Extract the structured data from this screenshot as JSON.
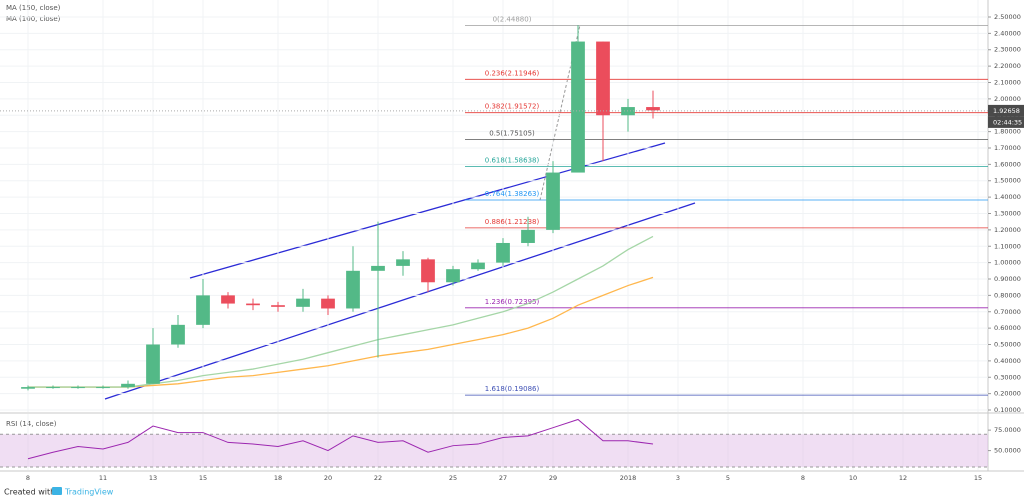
{
  "chart_data": [
    {
      "type": "candlestick",
      "x": [
        8,
        9,
        10,
        11,
        12,
        13,
        14,
        15,
        16,
        17,
        18,
        19,
        20,
        21,
        22,
        23,
        24,
        25,
        26,
        27,
        28,
        29,
        30,
        31,
        32,
        33
      ],
      "open": [
        0.23,
        0.24,
        0.24,
        0.24,
        0.24,
        0.26,
        0.5,
        0.62,
        0.8,
        0.75,
        0.74,
        0.73,
        0.78,
        0.72,
        0.95,
        0.98,
        1.02,
        0.88,
        0.96,
        1.0,
        1.12,
        1.2,
        1.55,
        2.35,
        1.9,
        1.95
      ],
      "high": [
        0.25,
        0.25,
        0.25,
        0.25,
        0.28,
        0.6,
        0.68,
        0.9,
        0.82,
        0.78,
        0.76,
        0.84,
        0.8,
        1.1,
        1.25,
        1.07,
        1.03,
        0.98,
        1.02,
        1.15,
        1.28,
        1.62,
        2.45,
        2.35,
        2.0,
        2.05
      ],
      "low": [
        0.22,
        0.23,
        0.23,
        0.23,
        0.23,
        0.26,
        0.48,
        0.6,
        0.72,
        0.71,
        0.7,
        0.7,
        0.68,
        0.7,
        0.42,
        0.92,
        0.82,
        0.86,
        0.95,
        0.98,
        1.1,
        1.18,
        1.55,
        1.62,
        1.8,
        1.88
      ],
      "close": [
        0.24,
        0.24,
        0.24,
        0.24,
        0.26,
        0.5,
        0.62,
        0.8,
        0.75,
        0.74,
        0.73,
        0.78,
        0.72,
        0.95,
        0.98,
        1.02,
        0.88,
        0.96,
        1.0,
        1.12,
        1.2,
        1.55,
        2.35,
        1.9,
        1.95,
        1.93
      ],
      "up_color": "#53b987",
      "down_color": "#eb4d5c",
      "series": [
        {
          "name": "MA (150, close)",
          "color": "#ffb74d",
          "values": [
            0.24,
            0.24,
            0.24,
            0.24,
            0.24,
            0.25,
            0.26,
            0.28,
            0.3,
            0.31,
            0.33,
            0.35,
            0.37,
            0.4,
            0.43,
            0.45,
            0.47,
            0.5,
            0.53,
            0.56,
            0.6,
            0.66,
            0.74,
            0.8,
            0.86,
            0.91
          ]
        },
        {
          "name": "MA (100, close)",
          "color": "#a5d6a7",
          "values": [
            0.24,
            0.24,
            0.24,
            0.24,
            0.24,
            0.26,
            0.28,
            0.31,
            0.33,
            0.35,
            0.38,
            0.41,
            0.45,
            0.49,
            0.53,
            0.56,
            0.59,
            0.62,
            0.66,
            0.7,
            0.75,
            0.82,
            0.9,
            0.98,
            1.08,
            1.16
          ]
        }
      ],
      "xlim": [
        6.88,
        46.4
      ],
      "xticks": [
        8,
        11,
        13,
        15,
        18,
        20,
        22,
        25,
        27,
        29,
        {
          "value": 32,
          "label": "2018"
        },
        {
          "value": 34,
          "label": "3"
        },
        {
          "value": 36,
          "label": "5"
        },
        {
          "value": 39,
          "label": "8"
        },
        {
          "value": 41,
          "label": "10"
        },
        {
          "value": 43,
          "label": "12"
        },
        {
          "value": 46,
          "label": "15"
        }
      ],
      "ylim": [
        0.0878,
        2.6038
      ],
      "yticks": [
        {
          "value": 0.1,
          "label": "0.10000"
        },
        {
          "value": 0.2,
          "label": "0.20000"
        },
        {
          "value": 0.3,
          "label": "0.30000"
        },
        {
          "value": 0.4,
          "label": "0.40000"
        },
        {
          "value": 0.5,
          "label": "0.50000"
        },
        {
          "value": 0.6,
          "label": "0.60000"
        },
        {
          "value": 0.7,
          "label": "0.70000"
        },
        {
          "value": 0.8,
          "label": "0.80000"
        },
        {
          "value": 0.9,
          "label": "0.90000"
        },
        {
          "value": 1.0,
          "label": "1.00000"
        },
        {
          "value": 1.1,
          "label": "1.10000"
        },
        {
          "value": 1.2,
          "label": "1.20000"
        },
        {
          "value": 1.3,
          "label": "1.30000"
        },
        {
          "value": 1.4,
          "label": "1.40000"
        },
        {
          "value": 1.5,
          "label": "1.50000"
        },
        {
          "value": 1.6,
          "label": "1.60000"
        },
        {
          "value": 1.7,
          "label": "1.70000"
        },
        {
          "value": 1.8,
          "label": "1.80000"
        },
        {
          "value": 1.9,
          "label": "1.90000"
        },
        {
          "value": 2.0,
          "label": "2.00000"
        },
        {
          "value": 2.1,
          "label": "2.10000"
        },
        {
          "value": 2.2,
          "label": "2.20000"
        },
        {
          "value": 2.3,
          "label": "2.30000"
        },
        {
          "value": 2.4,
          "label": "2.40000"
        },
        {
          "value": 2.5,
          "label": "2.50000"
        }
      ],
      "grid": true,
      "fib": [
        {
          "value": 2.4488,
          "label": "0(2.44880)",
          "color": "#9e9e9e"
        },
        {
          "value": 2.11946,
          "label": "0.236(2.11946)",
          "color": "#e53935"
        },
        {
          "value": 1.91572,
          "label": "0.382(1.91572)",
          "color": "#e53935"
        },
        {
          "value": 1.75105,
          "label": "0.5(1.75105)",
          "color": "#555555"
        },
        {
          "value": 1.58638,
          "label": "0.618(1.58638)",
          "color": "#26a69a"
        },
        {
          "value": 1.38263,
          "label": "0.764(1.38263)",
          "color": "#2196f3"
        },
        {
          "value": 1.21238,
          "label": "0.886(1.21238)",
          "color": "#e53935"
        },
        {
          "value": 0.72395,
          "label": "1.236(0.72395)",
          "color": "#9c27b0"
        },
        {
          "value": 0.19086,
          "label": "1.618(0.19086)",
          "color": "#3f51b5"
        }
      ],
      "last_price": {
        "value": 1.92658,
        "label": "1.92658"
      },
      "countdown": "02:44:35"
    },
    {
      "type": "line",
      "title": "RSI (14, close)",
      "series": [
        {
          "color": "#9c27b0",
          "values": [
            40,
            48,
            55,
            52,
            60,
            80,
            72,
            72,
            60,
            58,
            55,
            62,
            50,
            68,
            60,
            62,
            48,
            56,
            58,
            66,
            68,
            78,
            88,
            62,
            62,
            58
          ]
        }
      ],
      "ylim": [
        26.3,
        94.7
      ],
      "yticks": [
        {
          "value": 75,
          "label": "75.0000"
        },
        {
          "value": 50,
          "label": "50.0000"
        }
      ],
      "band": [
        30,
        70
      ],
      "band_color": "#e1bee7"
    }
  ],
  "footer": {
    "created": "Created with",
    "brand": "TradingView"
  }
}
